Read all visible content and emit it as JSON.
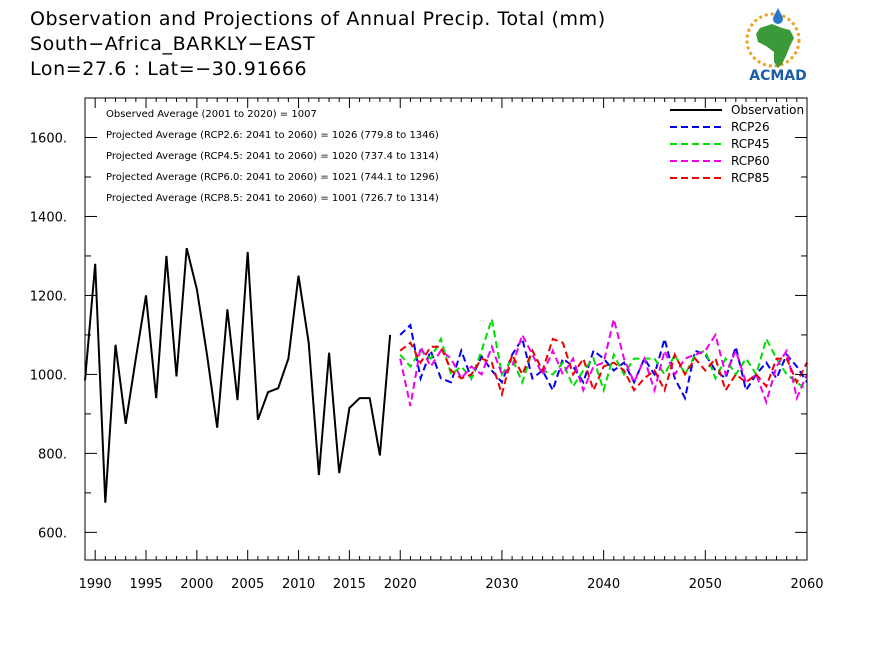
{
  "header": {
    "line1": "Observation and Projections of Annual Precip. Total (mm)",
    "line2": "South−Africa_BARKLY−EAST",
    "line3": "Lon=27.6 : Lat=−30.91666"
  },
  "logo": {
    "text": "ACMAD",
    "icon": "africa-map-sun-logo",
    "text_color": "#1a5ea8",
    "map_color": "#3a9a3a",
    "sun_color": "#f0a020",
    "drop_color": "#2a78c8"
  },
  "chart_data": {
    "type": "line",
    "xlim": [
      1989,
      2060
    ],
    "ylim": [
      530,
      1700
    ],
    "x_ticks": [
      1990,
      1995,
      2000,
      2005,
      2010,
      2015,
      2020,
      2030,
      2040,
      2050,
      2060
    ],
    "x_tick_labels": [
      "1990",
      "1995",
      "2000",
      "2005",
      "2010",
      "2015",
      "2020",
      "2030",
      "2040",
      "2050",
      "2060"
    ],
    "y_ticks": [
      600,
      800,
      1000,
      1200,
      1400,
      1600
    ],
    "y_tick_labels": [
      "600.",
      "800.",
      "1000.",
      "1200.",
      "1400.",
      "1600."
    ],
    "y_minor_ticks": [
      700,
      900,
      1100,
      1300,
      1500
    ],
    "annotations": [
      "Observed Average (2001 to 2020) = 1007",
      "Projected Average (RCP2.6: 2041 to 2060) = 1026 (779.8 to 1346)",
      "Projected Average (RCP4.5: 2041 to 2060) = 1020 (737.4 to 1314)",
      "Projected Average (RCP6.0: 2041 to 2060) = 1021 (744.1 to 1296)",
      "Projected Average (RCP8.5: 2041 to 2060) = 1001 (726.7 to 1314)"
    ],
    "legend_position": "top-right",
    "series": [
      {
        "name": "Observation",
        "color": "#000000",
        "dashed": false,
        "x": [
          1989,
          1990,
          1991,
          1992,
          1993,
          1994,
          1995,
          1996,
          1997,
          1998,
          1999,
          2000,
          2001,
          2002,
          2003,
          2004,
          2005,
          2006,
          2007,
          2008,
          2009,
          2010,
          2011,
          2012,
          2013,
          2014,
          2015,
          2016,
          2017,
          2018,
          2019
        ],
        "values": [
          985,
          1280,
          675,
          1075,
          875,
          1040,
          1200,
          940,
          1300,
          995,
          1320,
          1215,
          1050,
          865,
          1165,
          935,
          1310,
          885,
          955,
          965,
          1040,
          1250,
          1080,
          745,
          1055,
          750,
          915,
          940,
          940,
          795,
          1100
        ]
      },
      {
        "name": "RCP26",
        "color": "#0000ee",
        "dashed": true,
        "x": [
          2020,
          2021,
          2022,
          2023,
          2024,
          2025,
          2026,
          2027,
          2028,
          2029,
          2030,
          2031,
          2032,
          2033,
          2034,
          2035,
          2036,
          2037,
          2038,
          2039,
          2040,
          2041,
          2042,
          2043,
          2044,
          2045,
          2046,
          2047,
          2048,
          2049,
          2050,
          2051,
          2052,
          2053,
          2054,
          2055,
          2056,
          2057,
          2058,
          2059,
          2060
        ],
        "values": [
          1100,
          1125,
          990,
          1060,
          990,
          980,
          1060,
          990,
          1045,
          1010,
          980,
          1050,
          1090,
          990,
          1010,
          960,
          1040,
          1020,
          980,
          1060,
          1040,
          1010,
          1030,
          980,
          1040,
          1000,
          1090,
          990,
          940,
          1060,
          1050,
          1010,
          990,
          1070,
          960,
          1000,
          1030,
          990,
          1050,
          1020,
          980
        ]
      },
      {
        "name": "RCP45",
        "color": "#00dd00",
        "dashed": true,
        "x": [
          2020,
          2021,
          2022,
          2023,
          2024,
          2025,
          2026,
          2027,
          2028,
          2029,
          2030,
          2031,
          2032,
          2033,
          2034,
          2035,
          2036,
          2037,
          2038,
          2039,
          2040,
          2041,
          2042,
          2043,
          2044,
          2045,
          2046,
          2047,
          2048,
          2049,
          2050,
          2051,
          2052,
          2053,
          2054,
          2055,
          2056,
          2057,
          2058,
          2059,
          2060
        ],
        "values": [
          1050,
          1020,
          1060,
          1040,
          1090,
          1000,
          1020,
          990,
          1060,
          1140,
          1000,
          1040,
          980,
          1060,
          1010,
          1000,
          1030,
          970,
          1010,
          1040,
          960,
          1050,
          1000,
          1040,
          1040,
          1040,
          1000,
          1050,
          1000,
          1050,
          1060,
          990,
          1040,
          1000,
          1040,
          1000,
          1090,
          1040,
          1000,
          980,
          960
        ]
      },
      {
        "name": "RCP60",
        "color": "#ee00ee",
        "dashed": true,
        "x": [
          2020,
          2021,
          2022,
          2023,
          2024,
          2025,
          2026,
          2027,
          2028,
          2029,
          2030,
          2031,
          2032,
          2033,
          2034,
          2035,
          2036,
          2037,
          2038,
          2039,
          2040,
          2041,
          2042,
          2043,
          2044,
          2045,
          2046,
          2047,
          2048,
          2049,
          2050,
          2051,
          2052,
          2053,
          2054,
          2055,
          2056,
          2057,
          2058,
          2059,
          2060
        ],
        "values": [
          1040,
          920,
          1070,
          1020,
          1060,
          1040,
          990,
          1020,
          1000,
          1070,
          1000,
          1020,
          1100,
          1050,
          1000,
          1060,
          1000,
          1040,
          960,
          1020,
          1030,
          1140,
          1040,
          980,
          1040,
          960,
          1060,
          1000,
          1040,
          1050,
          1060,
          1100,
          1000,
          1060,
          980,
          1000,
          930,
          1020,
          1060,
          940,
          1000
        ]
      },
      {
        "name": "RCP85",
        "color": "#ee0000",
        "dashed": true,
        "x": [
          2020,
          2021,
          2022,
          2023,
          2024,
          2025,
          2026,
          2027,
          2028,
          2029,
          2030,
          2031,
          2032,
          2033,
          2034,
          2035,
          2036,
          2037,
          2038,
          2039,
          2040,
          2041,
          2042,
          2043,
          2044,
          2045,
          2046,
          2047,
          2048,
          2049,
          2050,
          2051,
          2052,
          2053,
          2054,
          2055,
          2056,
          2057,
          2058,
          2059,
          2060
        ],
        "values": [
          1060,
          1080,
          1030,
          1070,
          1070,
          1010,
          990,
          1000,
          1040,
          1030,
          950,
          1050,
          1000,
          1060,
          1010,
          1090,
          1080,
          1000,
          1040,
          960,
          1020,
          1030,
          1010,
          960,
          990,
          1010,
          960,
          1050,
          1000,
          1040,
          1010,
          1040,
          960,
          1000,
          980,
          1000,
          970,
          1040,
          1040,
          980,
          1030
        ]
      }
    ]
  }
}
